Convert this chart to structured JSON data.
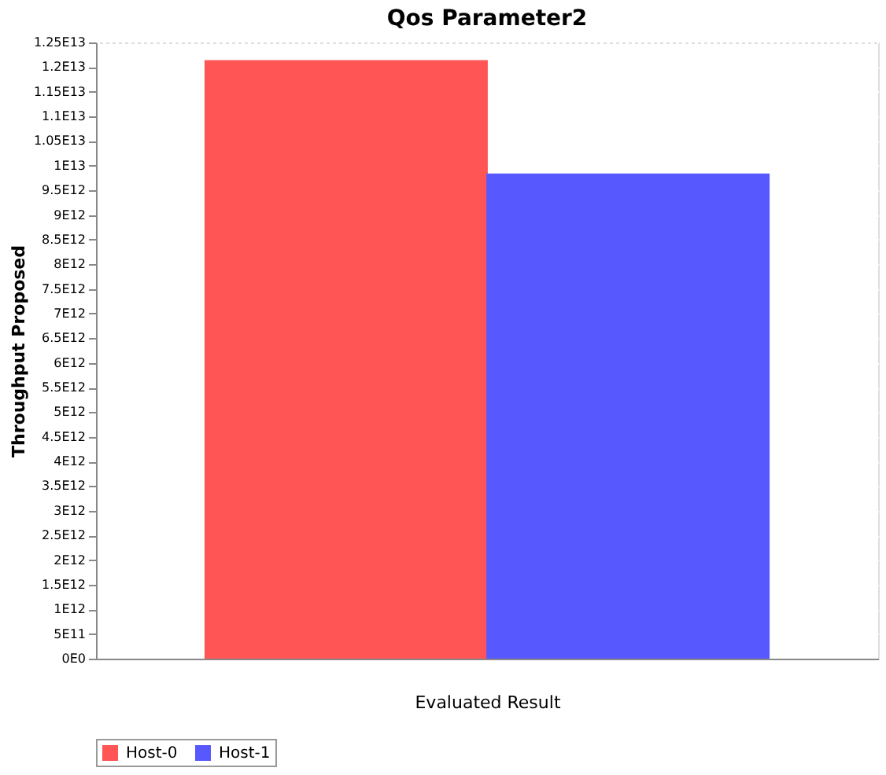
{
  "chart_data": {
    "type": "bar",
    "title": "Qos Parameter2",
    "xlabel": "Evaluated Result",
    "ylabel": "Throughput Proposed",
    "categories": [
      null
    ],
    "series": [
      {
        "name": "Host-0",
        "color": "#ff5555",
        "values": [
          12140000000000.0
        ]
      },
      {
        "name": "Host-1",
        "color": "#5858ff",
        "values": [
          9840000000000.0
        ]
      }
    ],
    "ylim": [
      0,
      12500000000000.0
    ],
    "yticks": [
      {
        "value": 0,
        "label": "0E0"
      },
      {
        "value": 500000000000.0,
        "label": "5E11"
      },
      {
        "value": 1000000000000.0,
        "label": "1E12"
      },
      {
        "value": 1500000000000.0,
        "label": "1.5E12"
      },
      {
        "value": 2000000000000.0,
        "label": "2E12"
      },
      {
        "value": 2500000000000.0,
        "label": "2.5E12"
      },
      {
        "value": 3000000000000.0,
        "label": "3E12"
      },
      {
        "value": 3500000000000.0,
        "label": "3.5E12"
      },
      {
        "value": 4000000000000.0,
        "label": "4E12"
      },
      {
        "value": 4500000000000.0,
        "label": "4.5E12"
      },
      {
        "value": 5000000000000.0,
        "label": "5E12"
      },
      {
        "value": 5500000000000.0,
        "label": "5.5E12"
      },
      {
        "value": 6000000000000.0,
        "label": "6E12"
      },
      {
        "value": 6500000000000.0,
        "label": "6.5E12"
      },
      {
        "value": 7000000000000.0,
        "label": "7E12"
      },
      {
        "value": 7500000000000.0,
        "label": "7.5E12"
      },
      {
        "value": 8000000000000.0,
        "label": "8E12"
      },
      {
        "value": 8500000000000.0,
        "label": "8.5E12"
      },
      {
        "value": 9000000000000.0,
        "label": "9E12"
      },
      {
        "value": 9500000000000.0,
        "label": "9.5E12"
      },
      {
        "value": 10000000000000.0,
        "label": "1E13"
      },
      {
        "value": 10500000000000.0,
        "label": "1.05E13"
      },
      {
        "value": 11000000000000.0,
        "label": "1.1E13"
      },
      {
        "value": 11500000000000.0,
        "label": "1.15E13"
      },
      {
        "value": 12000000000000.0,
        "label": "1.2E13"
      },
      {
        "value": 12500000000000.0,
        "label": "1.25E13"
      }
    ],
    "grid": "y",
    "legend": "bottom"
  }
}
